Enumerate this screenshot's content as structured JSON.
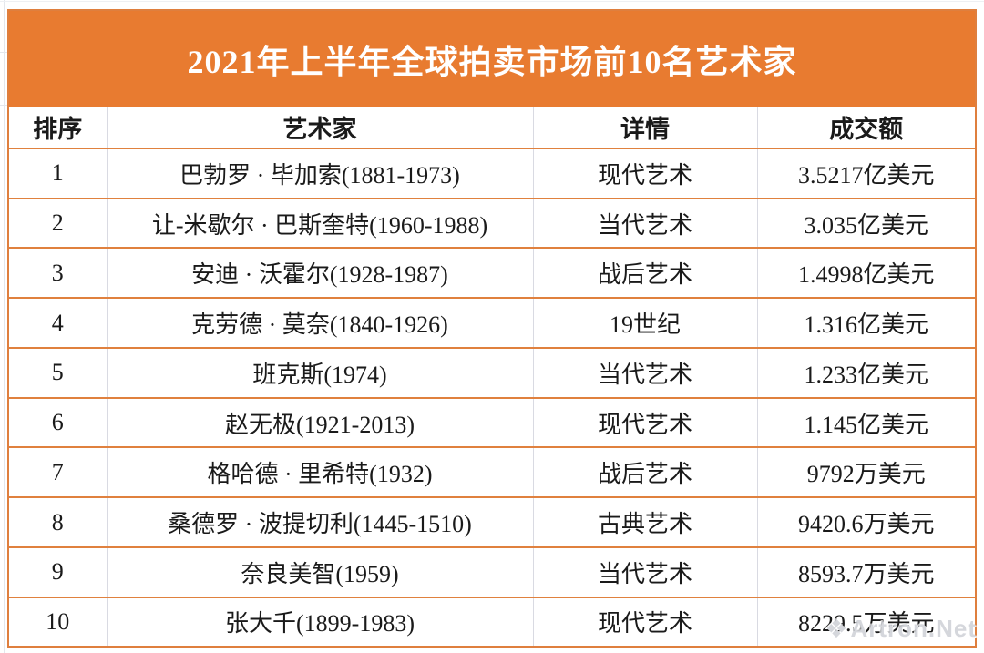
{
  "title": "2021年上半年全球拍卖市场前10名艺术家",
  "table": {
    "columns": [
      "排序",
      "艺术家",
      "详情",
      "成交额"
    ],
    "rows": [
      {
        "rank": "1",
        "artist": "巴勃罗 · 毕加索(1881-1973)",
        "detail": "现代艺术",
        "amount": "3.5217亿美元"
      },
      {
        "rank": "2",
        "artist": "让-米歇尔 · 巴斯奎特(1960-1988)",
        "detail": "当代艺术",
        "amount": "3.035亿美元"
      },
      {
        "rank": "3",
        "artist": "安迪 · 沃霍尔(1928-1987)",
        "detail": "战后艺术",
        "amount": "1.4998亿美元"
      },
      {
        "rank": "4",
        "artist": "克劳德 · 莫奈(1840-1926)",
        "detail": "19世纪",
        "amount": "1.316亿美元"
      },
      {
        "rank": "5",
        "artist": "班克斯(1974)",
        "detail": "当代艺术",
        "amount": "1.233亿美元"
      },
      {
        "rank": "6",
        "artist": "赵无极(1921-2013)",
        "detail": "现代艺术",
        "amount": "1.145亿美元"
      },
      {
        "rank": "7",
        "artist": "格哈德 · 里希特(1932)",
        "detail": "战后艺术",
        "amount": "9792万美元"
      },
      {
        "rank": "8",
        "artist": "桑德罗 · 波提切利(1445-1510)",
        "detail": "古典艺术",
        "amount": "9420.6万美元"
      },
      {
        "rank": "9",
        "artist": "奈良美智(1959)",
        "detail": "当代艺术",
        "amount": "8593.7万美元"
      },
      {
        "rank": "10",
        "artist": "张大千(1899-1983)",
        "detail": "现代艺术",
        "amount": "8229.5万美元"
      }
    ]
  },
  "watermark": {
    "logo": "❖",
    "text": "Artron.Net"
  },
  "colors": {
    "banner_orange": "#E87B30",
    "border_orange": "#E0813E",
    "border_gray": "#D9DAE2",
    "text": "#1A1A1A",
    "title_text": "#FFFFFF"
  },
  "chart_data": {
    "type": "table",
    "title": "2021年上半年全球拍卖市场前10名艺术家",
    "columns": [
      "排序",
      "艺术家",
      "详情",
      "成交额"
    ],
    "rows": [
      [
        "1",
        "巴勃罗 · 毕加索(1881-1973)",
        "现代艺术",
        "3.5217亿美元"
      ],
      [
        "2",
        "让-米歇尔 · 巴斯奎特(1960-1988)",
        "当代艺术",
        "3.035亿美元"
      ],
      [
        "3",
        "安迪 · 沃霍尔(1928-1987)",
        "战后艺术",
        "1.4998亿美元"
      ],
      [
        "4",
        "克劳德 · 莫奈(1840-1926)",
        "19世纪",
        "1.316亿美元"
      ],
      [
        "5",
        "班克斯(1974)",
        "当代艺术",
        "1.233亿美元"
      ],
      [
        "6",
        "赵无极(1921-2013)",
        "现代艺术",
        "1.145亿美元"
      ],
      [
        "7",
        "格哈德 · 里希特(1932)",
        "战后艺术",
        "9792万美元"
      ],
      [
        "8",
        "桑德罗 · 波提切利(1445-1510)",
        "古典艺术",
        "9420.6万美元"
      ],
      [
        "9",
        "奈良美智(1959)",
        "当代艺术",
        "8593.7万美元"
      ],
      [
        "10",
        "张大千(1899-1983)",
        "现代艺术",
        "8229.5万美元"
      ]
    ],
    "amounts_usd_million": [
      352.17,
      303.5,
      149.98,
      131.6,
      123.3,
      114.5,
      97.92,
      94.206,
      85.937,
      82.295
    ]
  }
}
